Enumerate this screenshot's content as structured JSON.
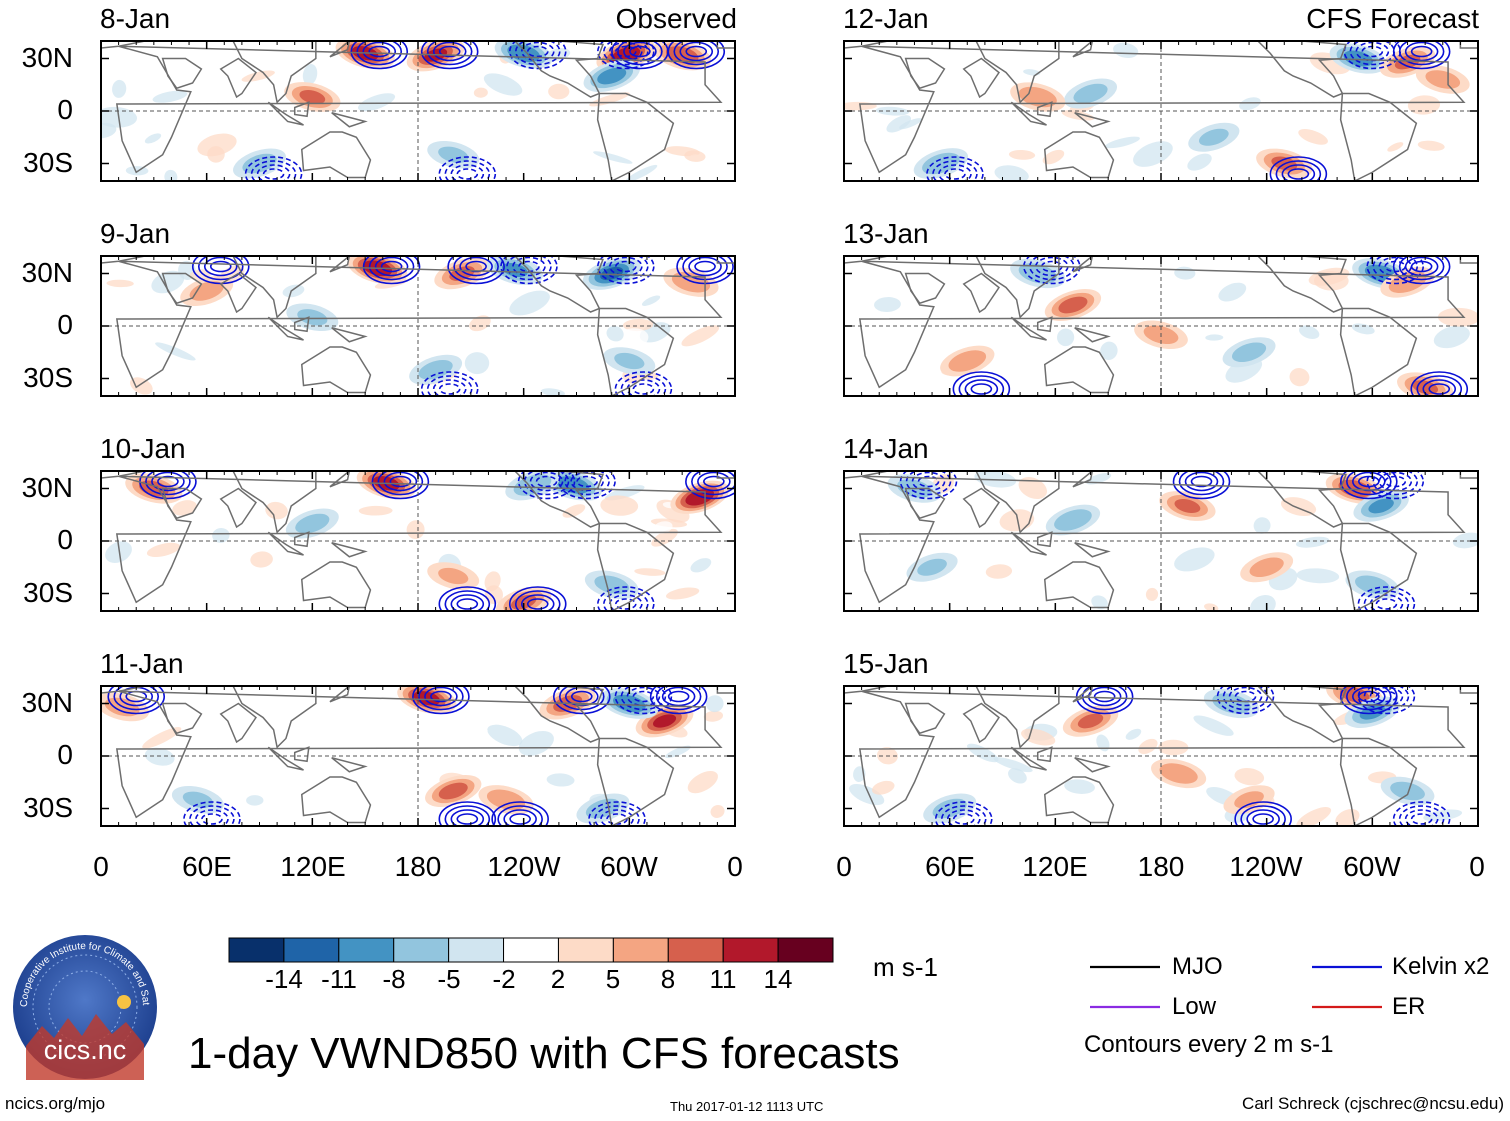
{
  "colors": {
    "kelvin": "#0a10d6",
    "er": "#d41a1a",
    "mjo": "#000000",
    "low": "#8a2be2",
    "coast": "#6e6e6e",
    "equator_line": "#555555"
  },
  "panels": {
    "observed": [
      {
        "date": "8-Jan",
        "corner": "Observed"
      },
      {
        "date": "9-Jan"
      },
      {
        "date": "10-Jan"
      },
      {
        "date": "11-Jan"
      }
    ],
    "forecast": [
      {
        "date": "12-Jan",
        "corner": "CFS Forecast"
      },
      {
        "date": "13-Jan"
      },
      {
        "date": "14-Jan"
      },
      {
        "date": "15-Jan"
      }
    ]
  },
  "axes": {
    "lat_labels": [
      "30N",
      "0",
      "30S"
    ],
    "lon_labels": [
      "0",
      "60E",
      "120E",
      "180",
      "120W",
      "60W",
      "0"
    ]
  },
  "colorbar": {
    "colors": [
      "#08306b",
      "#1f64a8",
      "#4393c3",
      "#92c5de",
      "#d1e5f0",
      "#ffffff",
      "#fddbc7",
      "#f4a582",
      "#d6604d",
      "#b2182b",
      "#67001f"
    ],
    "ticks": [
      "-14",
      "-11",
      "-8",
      "-5",
      "-2",
      "2",
      "5",
      "8",
      "11",
      "14"
    ],
    "units": "m s-1"
  },
  "legend": {
    "items": [
      {
        "label": "MJO",
        "color": "#000000"
      },
      {
        "label": "Kelvin x2",
        "color": "#0a10d6"
      },
      {
        "label": "Low",
        "color": "#8a2be2"
      },
      {
        "label": "ER",
        "color": "#d41a1a"
      }
    ],
    "note": "Contours every 2 m s-1"
  },
  "title": "1-day VWND850 with CFS forecasts",
  "footer": {
    "left": "ncics.org/mjo",
    "center": "Thu 2017-01-12 1113 UTC",
    "right": "Carl Schreck (cjschrec@ncsu.edu)"
  },
  "logo": {
    "text": "cics.nc",
    "ring_text": "Cooperative Institute for Climate and Satellites"
  },
  "chart_data": {
    "type": "heatmap",
    "variable": "850-hPa meridional wind anomaly (VWND850)",
    "units": "m s-1",
    "lat_range": [
      -40,
      40
    ],
    "lon_range": [
      0,
      360
    ],
    "contour_interval": 2,
    "levels": [
      -14,
      -11,
      -8,
      -5,
      -2,
      2,
      5,
      8,
      11,
      14
    ],
    "panels": [
      {
        "date": "8-Jan",
        "source": "Observed",
        "features": [
          [
            150,
            33,
            12
          ],
          [
            190,
            32,
            11
          ],
          [
            240,
            33,
            -10
          ],
          [
            298,
            32,
            13
          ],
          [
            330,
            32,
            10
          ],
          [
            290,
            20,
            -9
          ],
          [
            120,
            8,
            8
          ],
          [
            90,
            -30,
            -6
          ],
          [
            200,
            -25,
            -5
          ]
        ]
      },
      {
        "date": "9-Jan",
        "source": "Observed",
        "features": [
          [
            157,
            33,
            13
          ],
          [
            205,
            30,
            8
          ],
          [
            235,
            32,
            -8
          ],
          [
            290,
            30,
            -11
          ],
          [
            335,
            25,
            7
          ],
          [
            60,
            20,
            6
          ],
          [
            120,
            5,
            -5
          ],
          [
            190,
            -25,
            -6
          ],
          [
            300,
            -20,
            -5
          ]
        ]
      },
      {
        "date": "10-Jan",
        "source": "Observed",
        "features": [
          [
            162,
            33,
            12
          ],
          [
            340,
            25,
            13
          ],
          [
            268,
            32,
            -10
          ],
          [
            245,
            32,
            -7
          ],
          [
            30,
            30,
            9
          ],
          [
            120,
            10,
            -6
          ],
          [
            200,
            -20,
            5
          ],
          [
            240,
            -35,
            8
          ],
          [
            290,
            -25,
            -6
          ]
        ]
      },
      {
        "date": "11-Jan",
        "source": "Observed",
        "features": [
          [
            185,
            33,
            12
          ],
          [
            320,
            20,
            11
          ],
          [
            300,
            30,
            -10
          ],
          [
            265,
            30,
            9
          ],
          [
            12,
            28,
            6
          ],
          [
            200,
            -20,
            9
          ],
          [
            230,
            -25,
            7
          ],
          [
            285,
            -30,
            -6
          ],
          [
            55,
            -25,
            -5
          ]
        ]
      },
      {
        "date": "12-Jan",
        "source": "CFS Forecast",
        "features": [
          [
            292,
            30,
            -9
          ],
          [
            320,
            28,
            8
          ],
          [
            340,
            18,
            6
          ],
          [
            140,
            10,
            -6
          ],
          [
            110,
            8,
            7
          ],
          [
            210,
            -15,
            -5
          ],
          [
            250,
            -30,
            8
          ],
          [
            55,
            -30,
            -7
          ]
        ]
      },
      {
        "date": "13-Jan",
        "source": "CFS Forecast",
        "features": [
          [
            305,
            30,
            -10
          ],
          [
            320,
            25,
            7
          ],
          [
            110,
            30,
            -7
          ],
          [
            130,
            12,
            9
          ],
          [
            180,
            -5,
            6
          ],
          [
            230,
            -15,
            -6
          ],
          [
            330,
            -35,
            8
          ],
          [
            70,
            -20,
            7
          ]
        ]
      },
      {
        "date": "14-Jan",
        "source": "CFS Forecast",
        "features": [
          [
            290,
            30,
            10
          ],
          [
            305,
            20,
            -8
          ],
          [
            40,
            30,
            -6
          ],
          [
            130,
            12,
            -7
          ],
          [
            195,
            20,
            8
          ],
          [
            240,
            -15,
            6
          ],
          [
            300,
            -25,
            -6
          ],
          [
            50,
            -15,
            -5
          ]
        ]
      },
      {
        "date": "15-Jan",
        "source": "CFS Forecast",
        "features": [
          [
            290,
            35,
            9
          ],
          [
            300,
            25,
            -8
          ],
          [
            220,
            30,
            -7
          ],
          [
            140,
            20,
            8
          ],
          [
            190,
            -10,
            7
          ],
          [
            230,
            -25,
            5
          ],
          [
            320,
            -20,
            -6
          ],
          [
            60,
            -30,
            -6
          ]
        ]
      }
    ]
  }
}
